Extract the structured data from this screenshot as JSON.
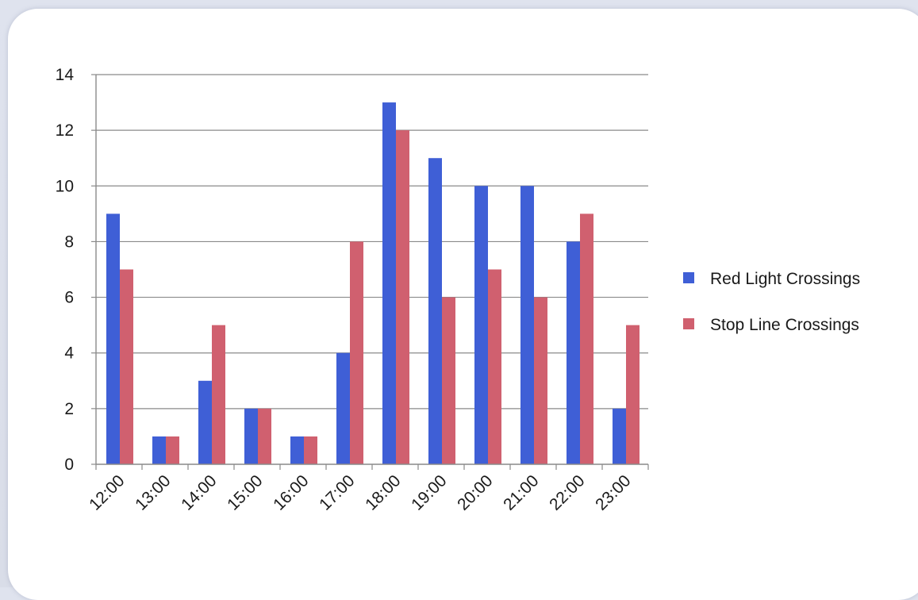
{
  "chart_data": {
    "type": "bar",
    "title": "",
    "xlabel": "",
    "ylabel": "",
    "categories": [
      "12:00",
      "13:00",
      "14:00",
      "15:00",
      "16:00",
      "17:00",
      "18:00",
      "19:00",
      "20:00",
      "21:00",
      "22:00",
      "23:00"
    ],
    "series": [
      {
        "name": "Red Light Crossings",
        "color": "#3f5fd6",
        "values": [
          9,
          1,
          3,
          2,
          1,
          4,
          13,
          11,
          10,
          10,
          8,
          2
        ]
      },
      {
        "name": "Stop Line Crossings",
        "color": "#d0606f",
        "values": [
          7,
          1,
          5,
          2,
          1,
          8,
          12,
          6,
          7,
          6,
          9,
          5
        ]
      }
    ],
    "ylim": [
      0,
      14
    ],
    "yticks": [
      "0",
      "2",
      "4",
      "6",
      "8",
      "10",
      "12",
      "14"
    ],
    "grid": true,
    "legend_position": "right"
  }
}
